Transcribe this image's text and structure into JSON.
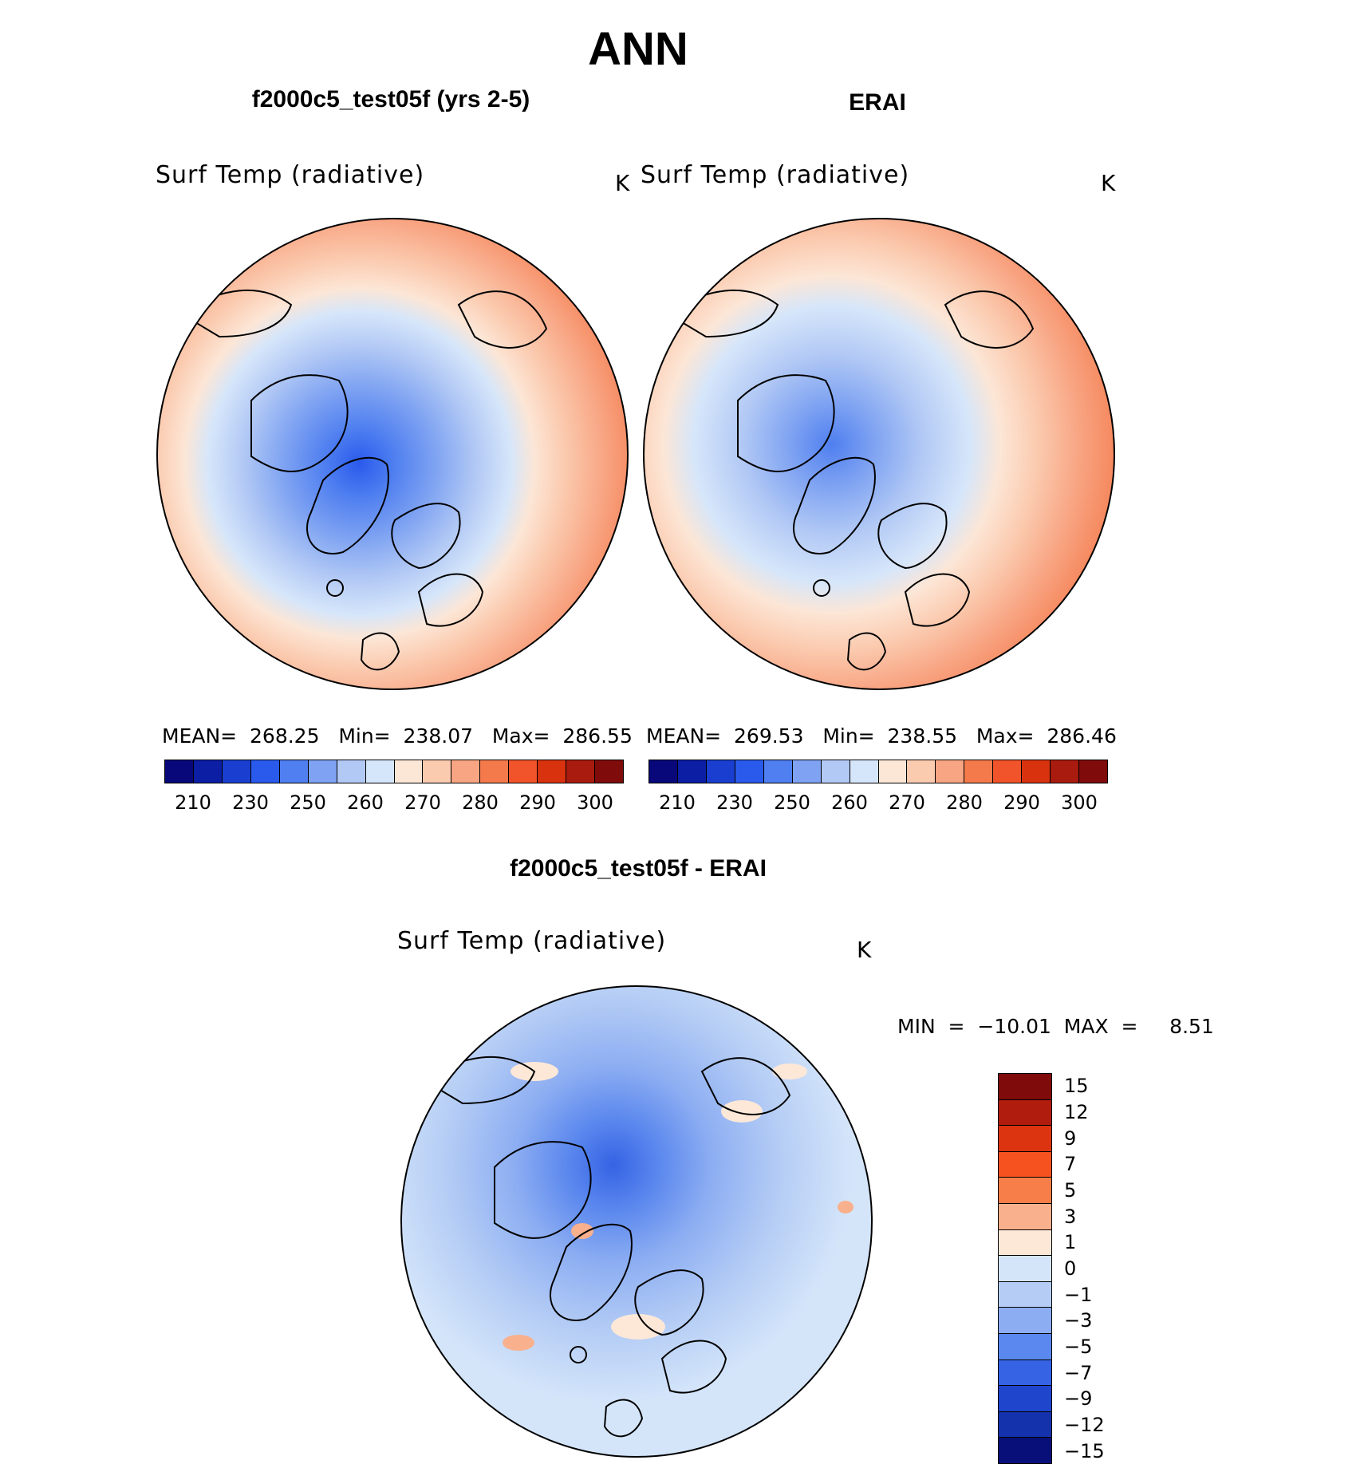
{
  "title": "ANN",
  "panels": {
    "test": {
      "title": "f2000c5_test05f (yrs 2-5)",
      "variable": "Surf Temp (radiative)",
      "units": "K",
      "stats": "MEAN=  268.25   Min=  238.07   Max=  286.55"
    },
    "obs": {
      "title": "ERAI",
      "variable": "Surf Temp (radiative)",
      "units": "K",
      "stats": "MEAN=  269.53   Min=  238.55   Max=  286.46"
    },
    "diff": {
      "title": "f2000c5_test05f - ERAI",
      "variable": "Surf Temp (radiative)",
      "units": "K",
      "stats": "MIN  =  −10.01  MAX  =     8.51"
    }
  },
  "chart_data": [
    {
      "type": "heatmap",
      "projection": "north polar stereographic",
      "title": "f2000c5_test05f (yrs 2-5)",
      "variable": "Surf Temp (radiative)",
      "units": "K",
      "mean": 268.25,
      "min": 238.07,
      "max": 286.55,
      "colorbar_ticks": [
        "210",
        "230",
        "250",
        "260",
        "270",
        "280",
        "290",
        "300"
      ]
    },
    {
      "type": "heatmap",
      "projection": "north polar stereographic",
      "title": "ERAI",
      "variable": "Surf Temp (radiative)",
      "units": "K",
      "mean": 269.53,
      "min": 238.55,
      "max": 286.46,
      "colorbar_ticks": [
        "210",
        "230",
        "250",
        "260",
        "270",
        "280",
        "290",
        "300"
      ]
    },
    {
      "type": "heatmap",
      "projection": "north polar stereographic",
      "title": "f2000c5_test05f - ERAI",
      "variable": "Surf Temp (radiative)",
      "units": "K",
      "min": -10.01,
      "max": 8.51,
      "colorbar_ticks": [
        "15",
        "12",
        "9",
        "7",
        "5",
        "3",
        "1",
        "0",
        "−1",
        "−3",
        "−5",
        "−7",
        "−9",
        "−12",
        "−15"
      ]
    }
  ],
  "colors": {
    "abs_scale": [
      "#08087a",
      "#0c1fa4",
      "#1a3fd0",
      "#2a5aec",
      "#4f7ff0",
      "#7fa3f2",
      "#b2c9f5",
      "#d6e6fa",
      "#fce6d6",
      "#fbcbb0",
      "#f8a583",
      "#f47a4c",
      "#f1532a",
      "#d8320f",
      "#a91b0e",
      "#800b0b"
    ],
    "diff_scale": [
      "#800b0b",
      "#b01d0e",
      "#dc3410",
      "#f5521f",
      "#f77e48",
      "#f9b08c",
      "#fde8d8",
      "#d4e5fa",
      "#b5cdf5",
      "#8cadf2",
      "#5b88ee",
      "#3563e4",
      "#1f45cc",
      "#1332ab",
      "#080f78"
    ]
  }
}
